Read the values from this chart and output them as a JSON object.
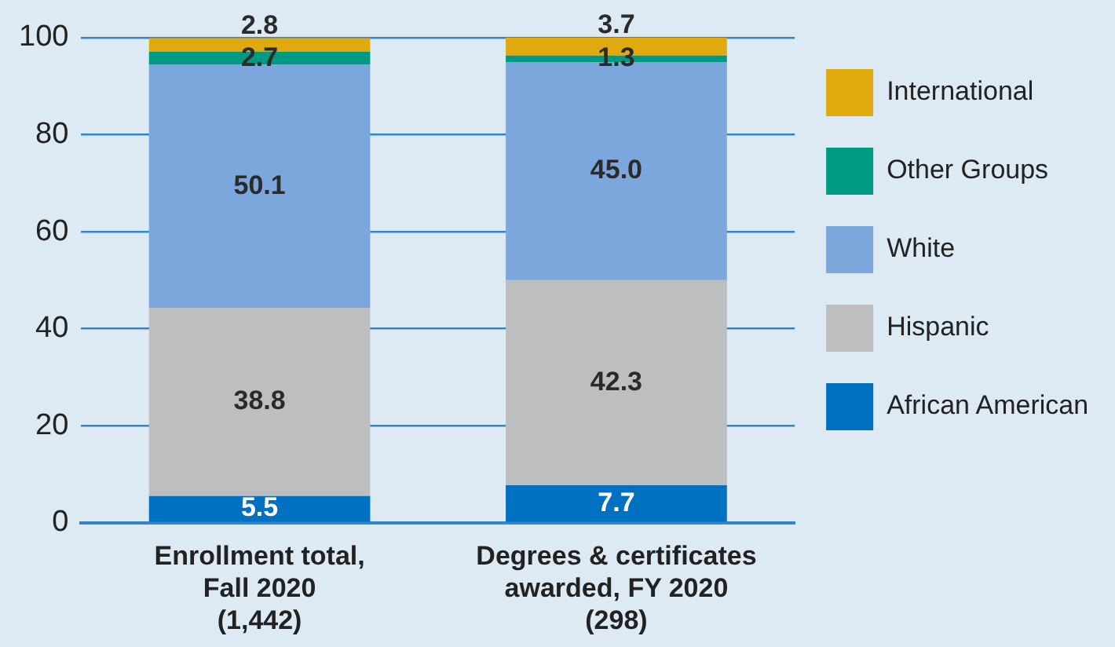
{
  "chart_data": {
    "type": "bar",
    "stacked": true,
    "categories": [
      "Enrollment total,\nFall 2020\n(1,442)",
      "Degrees & certificates\nawarded, FY 2020\n(298)"
    ],
    "series": [
      {
        "name": "African American",
        "color": "#0070c0",
        "values": [
          5.5,
          7.7
        ],
        "value_labels": [
          "5.5",
          "7.7"
        ]
      },
      {
        "name": "Hispanic",
        "color": "#bcbec0",
        "values": [
          38.8,
          42.3
        ],
        "value_labels": [
          "38.8",
          "42.3"
        ]
      },
      {
        "name": "White",
        "color": "#7ba7dc",
        "values": [
          50.1,
          45.0
        ],
        "value_labels": [
          "50.1",
          "45.0"
        ]
      },
      {
        "name": "Other Groups",
        "color": "#009983",
        "values": [
          2.7,
          1.3
        ],
        "value_labels": [
          "2.7",
          "1.3"
        ]
      },
      {
        "name": "International",
        "color": "#e0aa0f",
        "values": [
          2.8,
          3.7
        ],
        "value_labels": [
          "2.8",
          "3.7"
        ]
      }
    ],
    "ylim": [
      0,
      100
    ],
    "yticks": [
      0,
      20,
      40,
      60,
      80,
      100
    ],
    "grid": "y",
    "legend": "right"
  }
}
